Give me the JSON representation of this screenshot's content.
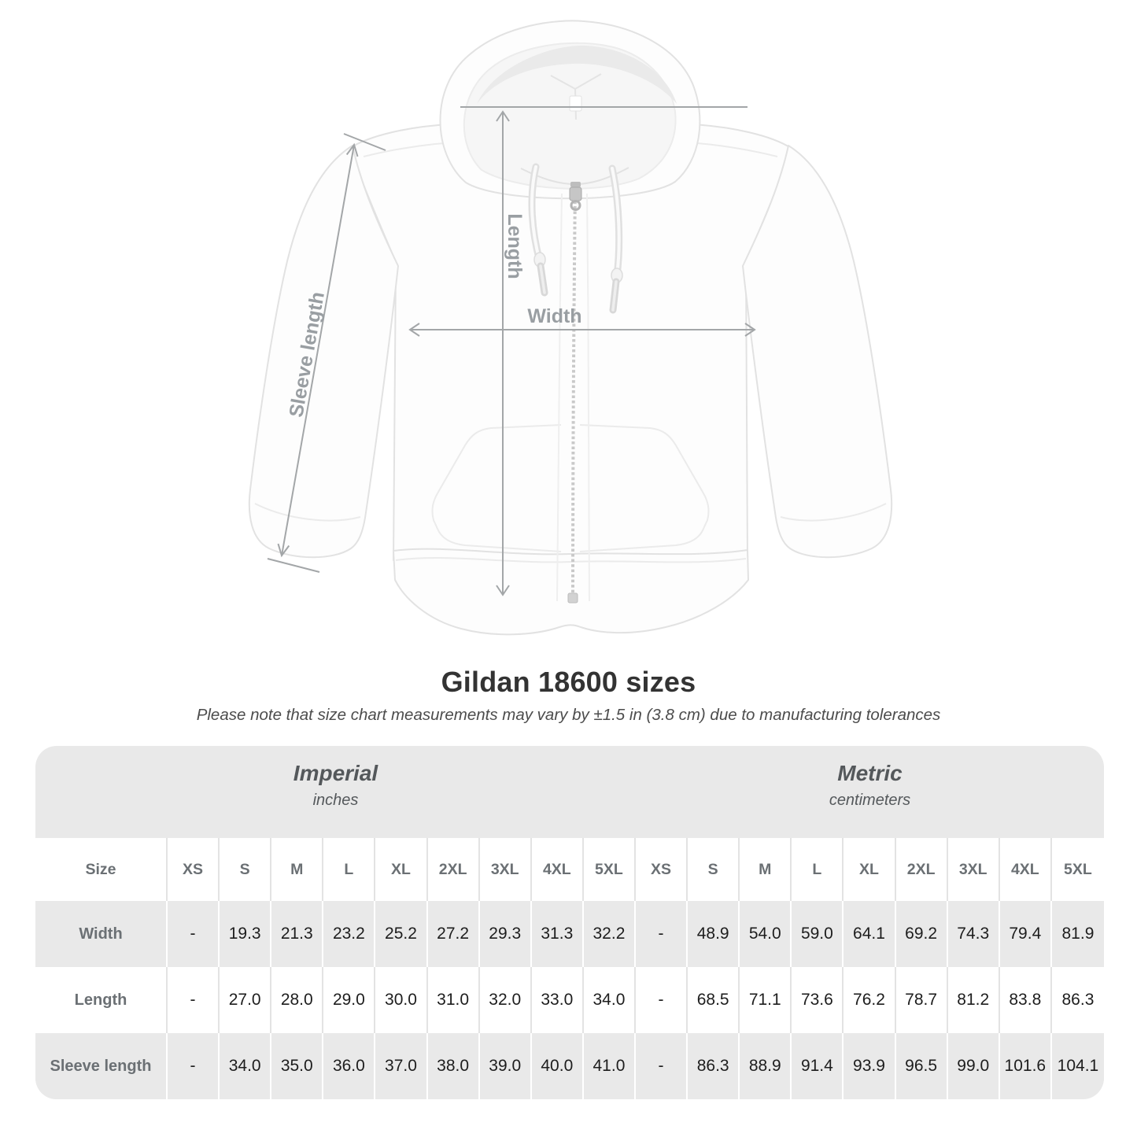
{
  "title": "Gildan 18600 sizes",
  "subtitle": "Please note that size chart measurements may vary by ±1.5 in (3.8 cm) due to manufacturing tolerances",
  "diagram": {
    "length_label": "Length",
    "width_label": "Width",
    "sleeve_label": "Sleeve length"
  },
  "chart_data": {
    "type": "table",
    "title": "Gildan 18600 sizes",
    "corner_label": "Size",
    "unit_groups": [
      {
        "label": "Imperial",
        "unit": "inches"
      },
      {
        "label": "Metric",
        "unit": "centimeters"
      }
    ],
    "sizes": [
      "XS",
      "S",
      "M",
      "L",
      "XL",
      "2XL",
      "3XL",
      "4XL",
      "5XL"
    ],
    "rows": [
      {
        "label": "Width",
        "imperial": [
          "-",
          "19.3",
          "21.3",
          "23.2",
          "25.2",
          "27.2",
          "29.3",
          "31.3",
          "32.2"
        ],
        "metric": [
          "-",
          "48.9",
          "54.0",
          "59.0",
          "64.1",
          "69.2",
          "74.3",
          "79.4",
          "81.9"
        ]
      },
      {
        "label": "Length",
        "imperial": [
          "-",
          "27.0",
          "28.0",
          "29.0",
          "30.0",
          "31.0",
          "32.0",
          "33.0",
          "34.0"
        ],
        "metric": [
          "-",
          "68.5",
          "71.1",
          "73.6",
          "76.2",
          "78.7",
          "81.2",
          "83.8",
          "86.3"
        ]
      },
      {
        "label": "Sleeve length",
        "imperial": [
          "-",
          "34.0",
          "35.0",
          "36.0",
          "37.0",
          "38.0",
          "39.0",
          "40.0",
          "41.0"
        ],
        "metric": [
          "-",
          "86.3",
          "88.9",
          "91.4",
          "93.9",
          "96.5",
          "99.0",
          "101.6",
          "104.1"
        ]
      }
    ]
  },
  "colors": {
    "table_band_gray": "#e9e9e9",
    "header_text_gray": "#6b7074",
    "value_text": "#1d1d1d",
    "annotation_gray": "#999ea2",
    "arrow_gray": "#a3a6a8",
    "title_color": "#333333"
  }
}
